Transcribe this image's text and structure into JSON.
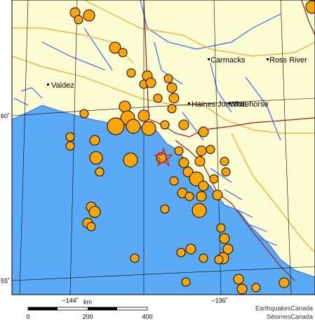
{
  "places": [
    {
      "label": "Valdez"
    },
    {
      "label": "Carmacks"
    },
    {
      "label": "Ross River"
    },
    {
      "label": "Haines Junction"
    },
    {
      "label": "Whitehorse"
    }
  ],
  "graticule": {
    "lat_labels": [
      "60˚",
      "55˚"
    ],
    "lon_labels": [
      "−144˚",
      "−136˚"
    ]
  },
  "scale_bar": {
    "unit": "km",
    "labels": [
      0,
      200,
      400
    ]
  },
  "credits": [
    "EarthquakesCanada",
    "SéismesCanada"
  ]
}
